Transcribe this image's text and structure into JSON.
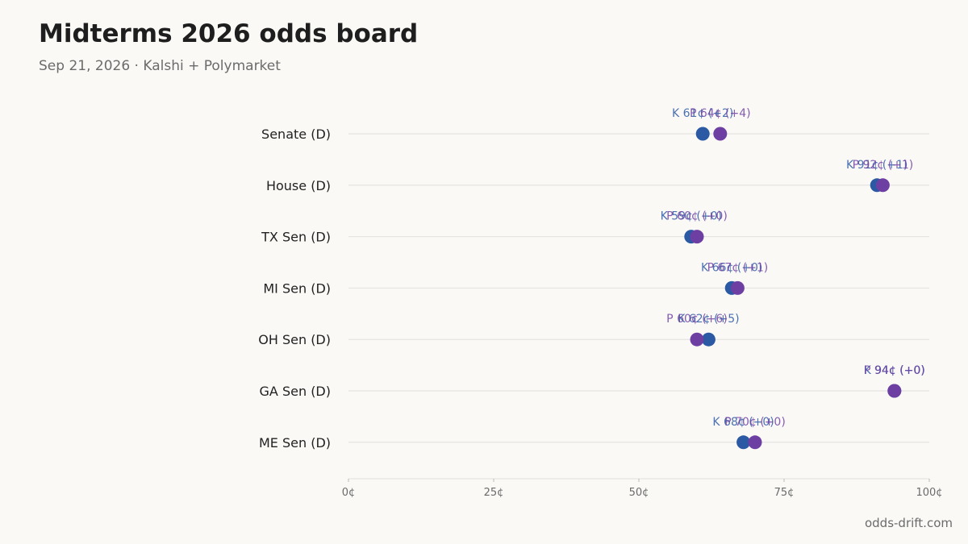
{
  "header": {
    "title": "Midterms 2026 odds board",
    "subtitle": "Sep 21, 2026 · Kalshi + Polymarket"
  },
  "footer": {
    "source": "odds-drift.com"
  },
  "colors": {
    "background": "#faf9f6",
    "kalshi": "#2b59a3",
    "polymarket": "#6e3fa3",
    "grid": "#e2e0dc"
  },
  "chart_data": {
    "type": "scatter",
    "categories": [
      "Senate (D)",
      "House (D)",
      "TX Sen (D)",
      "MI Sen (D)",
      "OH Sen (D)",
      "GA Sen (D)",
      "ME Sen (D)"
    ],
    "series": [
      {
        "key": "K",
        "values": [
          61,
          91,
          59,
          66,
          62,
          94,
          68
        ],
        "labels": [
          "K 61¢ (+2)",
          "K 91¢ (+1)",
          "K 59¢ (+0)",
          "K 66¢ (+0)",
          "K 62¢ (+5)",
          "K 94¢ (+0)",
          "K 68¢ (+0)"
        ]
      },
      {
        "key": "P",
        "values": [
          64,
          92,
          60,
          67,
          60,
          94,
          70
        ],
        "labels": [
          "P 64¢ (+4)",
          "P 92¢ (+1)",
          "P 60¢ (+0)",
          "P 67¢ (+1)",
          "P 60¢ (+6)",
          "P 94¢ (+0)",
          "P 70¢ (+0)"
        ]
      }
    ],
    "xlim": [
      0,
      100
    ],
    "xticks": [
      0,
      25,
      50,
      75,
      100
    ],
    "xtick_labels": [
      "0¢",
      "25¢",
      "50¢",
      "75¢",
      "100¢"
    ],
    "grid": true
  }
}
